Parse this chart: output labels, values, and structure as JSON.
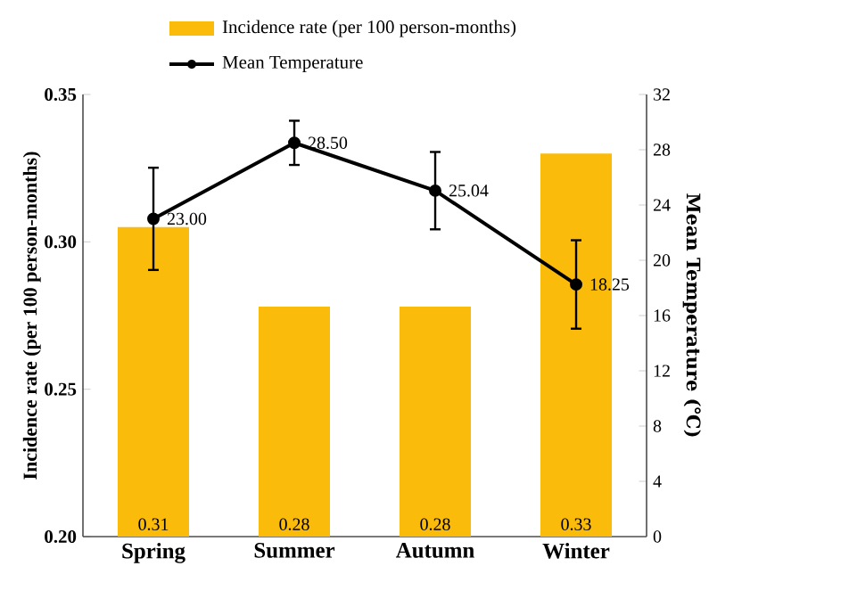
{
  "chart_data": {
    "type": "bar",
    "categories": [
      "Spring",
      "Summer",
      "Autumn",
      "Winter"
    ],
    "ylabel": "Incidence rate (per 100 person-months)",
    "y2label": "Mean Temperature (℃)",
    "ylim": [
      0.2,
      0.35
    ],
    "yticks": [
      {
        "value": 0.2,
        "label": "0.20"
      },
      {
        "value": 0.25,
        "label": "0.25"
      },
      {
        "value": 0.3,
        "label": "0.30"
      },
      {
        "value": 0.35,
        "label": "0.35"
      }
    ],
    "y2lim": [
      0,
      32
    ],
    "y2ticks": [
      0,
      4,
      8,
      12,
      16,
      20,
      24,
      28,
      32
    ],
    "legend": "top",
    "grid": false,
    "series": [
      {
        "name": "Incidence rate (per 100 person-months)",
        "color": "#fbbb0a",
        "values": [
          0.305,
          0.278,
          0.278,
          0.33
        ],
        "value_labels": [
          "0.31",
          "0.28",
          "0.28",
          "0.33"
        ]
      },
      {
        "name": "Mean Temperature",
        "type": "line",
        "axis": "y2",
        "color": "#000000",
        "marker": "circle",
        "values": [
          23.0,
          28.5,
          25.04,
          18.25
        ],
        "errors": [
          3.7,
          1.6,
          2.8,
          3.2
        ],
        "value_labels": [
          "23.00",
          "28.50",
          "25.04",
          "18.25"
        ]
      }
    ]
  }
}
